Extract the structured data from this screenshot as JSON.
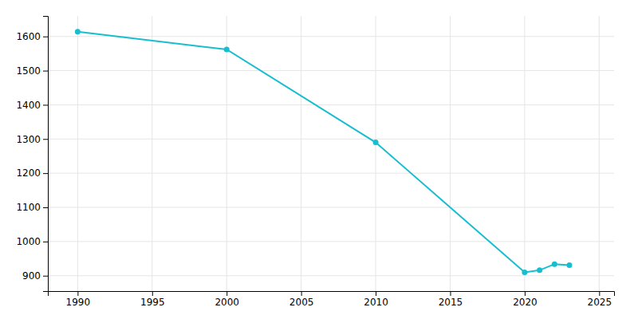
{
  "chart_data": {
    "type": "line",
    "x": [
      1990,
      2000,
      2010,
      2020,
      2021,
      2022,
      2023
    ],
    "values": [
      1614,
      1562,
      1290,
      910,
      916,
      934,
      931
    ],
    "color": "#17becf",
    "marker": "circle",
    "xlim": [
      1988,
      2026
    ],
    "ylim": [
      855,
      1660
    ],
    "xticks": [
      1990,
      1995,
      2000,
      2005,
      2010,
      2015,
      2020,
      2025
    ],
    "yticks": [
      900,
      1000,
      1100,
      1200,
      1300,
      1400,
      1500,
      1600
    ],
    "grid": true
  }
}
